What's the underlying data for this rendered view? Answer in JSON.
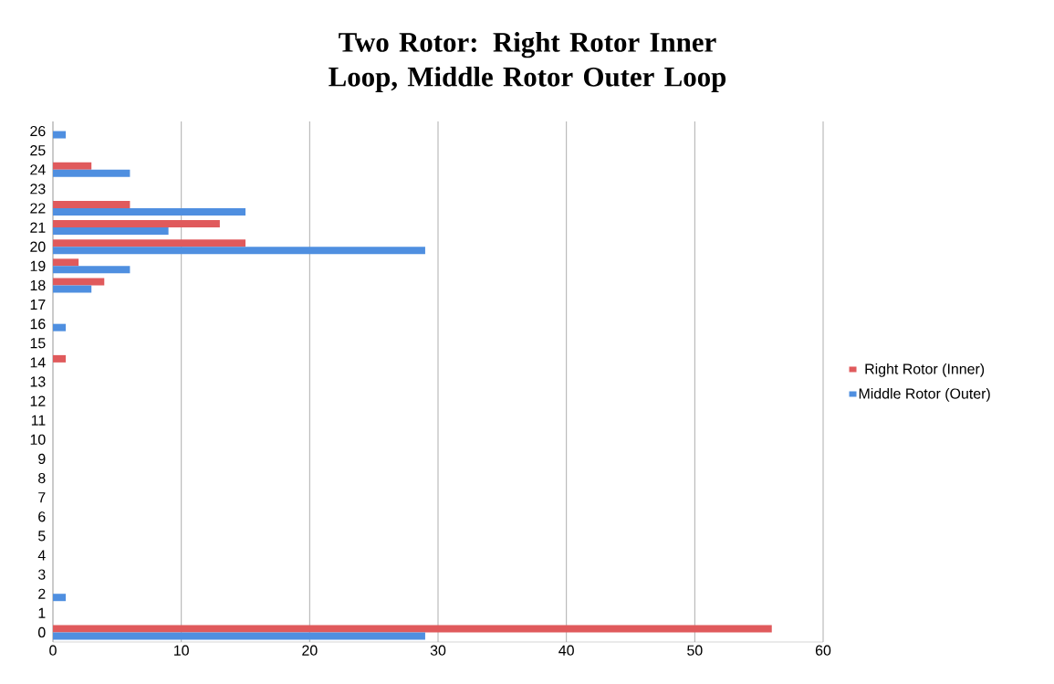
{
  "chart_data": {
    "type": "bar",
    "orientation": "horizontal",
    "title": "Two Rotor: Right Rotor Inner Loop, Middle Rotor Outer Loop",
    "categories": [
      "26",
      "25",
      "24",
      "23",
      "22",
      "21",
      "20",
      "19",
      "18",
      "17",
      "16",
      "15",
      "14",
      "13",
      "12",
      "11",
      "10",
      "9",
      "8",
      "7",
      "6",
      "5",
      "4",
      "3",
      "2",
      "1",
      "0"
    ],
    "series": [
      {
        "name": "Right Rotor (Inner)",
        "color": "#e05a5c",
        "values": [
          0,
          0,
          3,
          0,
          6,
          13,
          15,
          2,
          4,
          0,
          0,
          0,
          1,
          0,
          0,
          0,
          0,
          0,
          0,
          0,
          0,
          0,
          0,
          0,
          0,
          0,
          56
        ]
      },
      {
        "name": "Middle Rotor (Outer)",
        "color": "#4f8fe0",
        "values": [
          1,
          0,
          6,
          0,
          15,
          9,
          29,
          6,
          3,
          0,
          1,
          0,
          0,
          0,
          0,
          0,
          0,
          0,
          0,
          0,
          0,
          0,
          0,
          0,
          1,
          0,
          29
        ]
      }
    ],
    "xlim": [
      0,
      60
    ],
    "xticks": [
      0,
      10,
      20,
      30,
      40,
      50,
      60
    ],
    "grid": "x",
    "legend": "right"
  }
}
